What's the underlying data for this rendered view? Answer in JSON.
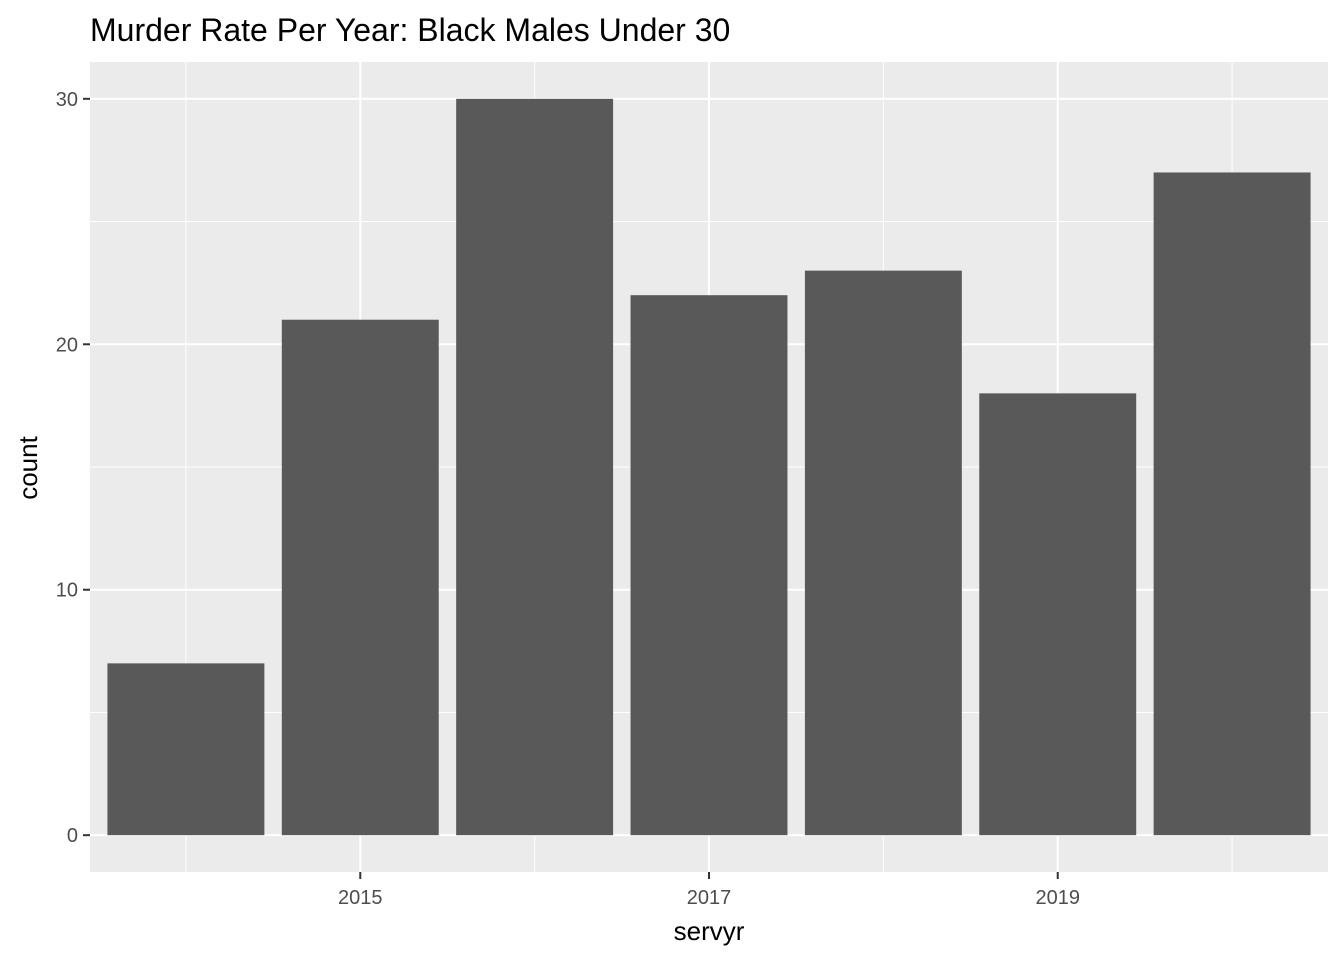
{
  "chart_data": {
    "type": "bar",
    "title": "Murder Rate Per Year: Black Males Under 30",
    "xlabel": "servyr",
    "ylabel": "count",
    "x": [
      2014,
      2015,
      2016,
      2017,
      2018,
      2019,
      2020
    ],
    "values": [
      7,
      21,
      30,
      22,
      23,
      18,
      27
    ],
    "x_ticks": [
      2015,
      2017,
      2019
    ],
    "x_tick_labels": [
      "2015",
      "2017",
      "2019"
    ],
    "y_ticks": [
      0,
      10,
      20,
      30
    ],
    "y_tick_labels": [
      "0",
      "10",
      "20",
      "30"
    ],
    "xlim": [
      2013.45,
      2020.55
    ],
    "ylim": [
      -1.5,
      31.5
    ],
    "grid": true,
    "colors": {
      "bar": "#595959",
      "panel": "#ebebeb",
      "grid": "#ffffff",
      "tick_text": "#4d4d4d",
      "tick_mark": "#333333"
    }
  }
}
